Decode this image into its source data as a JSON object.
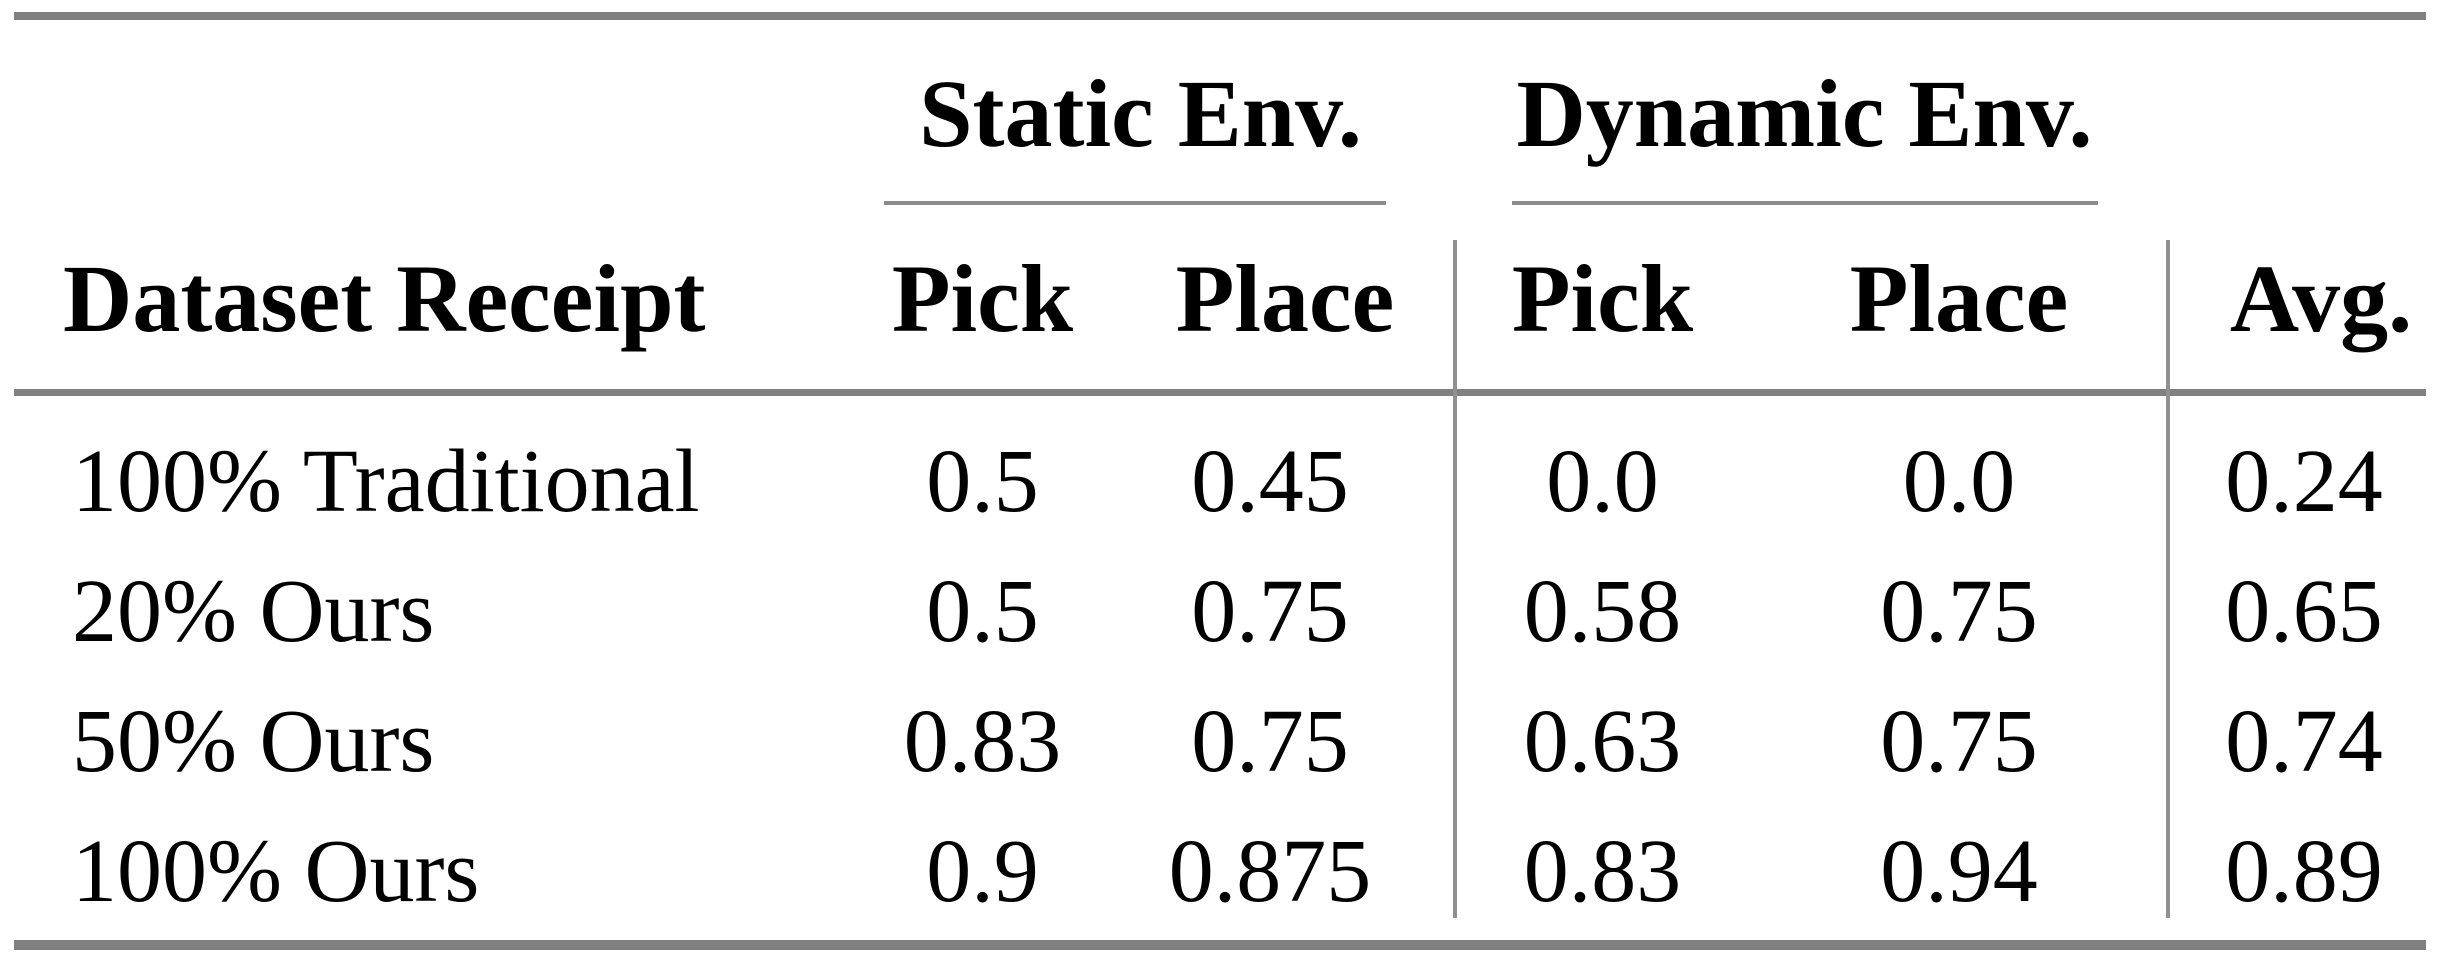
{
  "colors": {
    "background": "#ffffff",
    "text": "#000000",
    "thick_rule": "#808080",
    "thin_rule": "#8a8a8a",
    "vertical_divider": "#909090"
  },
  "header": {
    "dataset_col": "Dataset Receipt",
    "groups": [
      {
        "label": "Static Env.",
        "cols": [
          "Pick",
          "Place"
        ]
      },
      {
        "label": "Dynamic Env.",
        "cols": [
          "Pick",
          "Place"
        ]
      }
    ],
    "avg_col": "Avg."
  },
  "rows": [
    {
      "label": "100% Traditional",
      "values": [
        "0.5",
        "0.45",
        "0.0",
        "0.0",
        "0.24"
      ]
    },
    {
      "label": "20% Ours",
      "values": [
        "0.5",
        "0.75",
        "0.58",
        "0.75",
        "0.65"
      ]
    },
    {
      "label": "50% Ours",
      "values": [
        "0.83",
        "0.75",
        "0.63",
        "0.75",
        "0.74"
      ]
    },
    {
      "label": "100% Ours",
      "values": [
        "0.9",
        "0.875",
        "0.83",
        "0.94",
        "0.89"
      ]
    }
  ],
  "chart_data": {
    "type": "table",
    "columns": [
      "Dataset Receipt",
      "Static Env. Pick",
      "Static Env. Place",
      "Dynamic Env. Pick",
      "Dynamic Env. Place",
      "Avg."
    ],
    "rows": [
      [
        "100% Traditional",
        0.5,
        0.45,
        0.0,
        0.0,
        0.24
      ],
      [
        "20% Ours",
        0.5,
        0.75,
        0.58,
        0.75,
        0.65
      ],
      [
        "50% Ours",
        0.83,
        0.75,
        0.63,
        0.75,
        0.74
      ],
      [
        "100% Ours",
        0.9,
        0.875,
        0.83,
        0.94,
        0.89
      ]
    ]
  }
}
